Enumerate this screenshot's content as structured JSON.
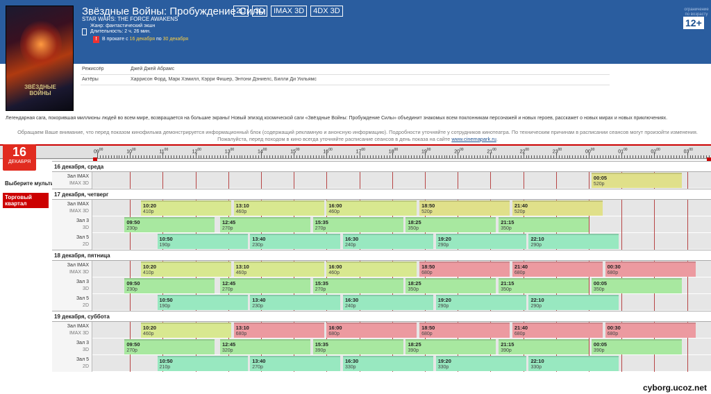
{
  "movie": {
    "title": "Звёздные Войны: Пробуждение Силы",
    "formats": [
      "2D",
      "3D",
      "IMAX 3D",
      "4DX 3D"
    ],
    "original_title": "STAR WARS: THE FORCE AWAKENS",
    "genre": "Жанр: фантастический экшн",
    "duration": "Длительность: 2 ч. 26 мин.",
    "release_prefix": "В прокате с",
    "release_from": "16 декабря",
    "release_mid": "по",
    "release_to": "30 декабря",
    "age_note": "ограничение по возрасту",
    "age_rating": "12+",
    "director_label": "Режиссёр",
    "director": "Джей Джей Абрамс",
    "actors_label": "Актёры",
    "actors": "Харрисон Форд, Марк Хэмилл, Кэрри Фишер, Энтони Дэниелс, Билли Ди Уильямс",
    "description": "Легендарная сага, покорившая миллионы людей во всем мире, возвращается на большие экраны! Новый эпизод космической саги «Звёздные Войны: Пробуждение Силы» объединит знакомых всем поклонникам персонажей и новых героев, расскажет о новых мирах и новых приключениях.",
    "notice": "Обращаем Ваше внимание, что перед показом кинофильма демонстрируется информационный блок (содержащий рекламную и анонсную информацию). Подробности уточняйте у сотрудников кинотеатра. По техническим причинам в расписании сеансов могут произойти изменения. Пожалуйста, перед походом в кино всегда уточняйте расписание сеансов в день показа на сайте",
    "notice_link": "www.cinemapark.ru",
    "poster_logo": "ЗВЁЗДНЫЕ ВОЙНЫ"
  },
  "sidebar": {
    "date_day": "16",
    "date_month": "ДЕКАБРЯ",
    "choose_label": "Выберите мультиплекс:",
    "multiplex": "Торговый квартал"
  },
  "timeline": {
    "hours": [
      "09",
      "10",
      "11",
      "12",
      "13",
      "14",
      "15",
      "16",
      "17",
      "18",
      "19",
      "20",
      "21",
      "22",
      "23",
      "00",
      "01",
      "02",
      "03"
    ],
    "minutes_suffix": "00"
  },
  "days": [
    {
      "date": "16 декабря, среда",
      "halls": [
        {
          "name": "Зал IMAX",
          "format": "IMAX 3D",
          "sessions": [
            {
              "time": "00:05",
              "price": "520р",
              "color": "k"
            }
          ]
        }
      ]
    },
    {
      "date": "17 декабря, четверг",
      "halls": [
        {
          "name": "Зал IMAX",
          "format": "IMAX 3D",
          "sessions": [
            {
              "time": "10:20",
              "price": "410р",
              "color": "y"
            },
            {
              "time": "13:10",
              "price": "460р",
              "color": "y"
            },
            {
              "time": "16:00",
              "price": "460р",
              "color": "y"
            },
            {
              "time": "18:50",
              "price": "520р",
              "color": "k"
            },
            {
              "time": "21:40",
              "price": "520р",
              "color": "k"
            }
          ]
        },
        {
          "name": "Зал 3",
          "format": "3D",
          "sessions": [
            {
              "time": "09:50",
              "price": "230р",
              "color": "g"
            },
            {
              "time": "12:45",
              "price": "270р",
              "color": "g"
            },
            {
              "time": "15:35",
              "price": "270р",
              "color": "g"
            },
            {
              "time": "18:25",
              "price": "350р",
              "color": "g"
            },
            {
              "time": "21:15",
              "price": "350р",
              "color": "g"
            }
          ]
        },
        {
          "name": "Зал 5",
          "format": "2D",
          "sessions": [
            {
              "time": "10:50",
              "price": "190р",
              "color": "t"
            },
            {
              "time": "13:40",
              "price": "230р",
              "color": "t"
            },
            {
              "time": "16:30",
              "price": "240р",
              "color": "t"
            },
            {
              "time": "19:20",
              "price": "290р",
              "color": "t"
            },
            {
              "time": "22:10",
              "price": "290р",
              "color": "t"
            }
          ]
        }
      ]
    },
    {
      "date": "18 декабря, пятница",
      "halls": [
        {
          "name": "Зал IMAX",
          "format": "IMAX 3D",
          "sessions": [
            {
              "time": "10:20",
              "price": "410р",
              "color": "y"
            },
            {
              "time": "13:10",
              "price": "460р",
              "color": "y"
            },
            {
              "time": "16:00",
              "price": "460р",
              "color": "y"
            },
            {
              "time": "18:50",
              "price": "680р",
              "color": "r"
            },
            {
              "time": "21:40",
              "price": "680р",
              "color": "r"
            },
            {
              "time": "00:30",
              "price": "680р",
              "color": "r"
            }
          ]
        },
        {
          "name": "Зал 3",
          "format": "3D",
          "sessions": [
            {
              "time": "09:50",
              "price": "230р",
              "color": "g"
            },
            {
              "time": "12:45",
              "price": "270р",
              "color": "g"
            },
            {
              "time": "15:35",
              "price": "270р",
              "color": "g"
            },
            {
              "time": "18:25",
              "price": "350р",
              "color": "g"
            },
            {
              "time": "21:15",
              "price": "350р",
              "color": "g"
            },
            {
              "time": "00:05",
              "price": "350р",
              "color": "g"
            }
          ]
        },
        {
          "name": "Зал 5",
          "format": "2D",
          "sessions": [
            {
              "time": "10:50",
              "price": "190р",
              "color": "t"
            },
            {
              "time": "13:40",
              "price": "230р",
              "color": "t"
            },
            {
              "time": "16:30",
              "price": "240р",
              "color": "t"
            },
            {
              "time": "19:20",
              "price": "290р",
              "color": "t"
            },
            {
              "time": "22:10",
              "price": "290р",
              "color": "t"
            }
          ]
        }
      ]
    },
    {
      "date": "19 декабря, суббота",
      "halls": [
        {
          "name": "Зал IMAX",
          "format": "IMAX 3D",
          "sessions": [
            {
              "time": "10:20",
              "price": "460р",
              "color": "y"
            },
            {
              "time": "13:10",
              "price": "680р",
              "color": "r"
            },
            {
              "time": "16:00",
              "price": "680р",
              "color": "r"
            },
            {
              "time": "18:50",
              "price": "680р",
              "color": "r"
            },
            {
              "time": "21:40",
              "price": "680р",
              "color": "r"
            },
            {
              "time": "00:30",
              "price": "680р",
              "color": "r"
            }
          ]
        },
        {
          "name": "Зал 3",
          "format": "3D",
          "sessions": [
            {
              "time": "09:50",
              "price": "270р",
              "color": "g"
            },
            {
              "time": "12:45",
              "price": "320р",
              "color": "g"
            },
            {
              "time": "15:35",
              "price": "390р",
              "color": "g"
            },
            {
              "time": "18:25",
              "price": "390р",
              "color": "g"
            },
            {
              "time": "21:15",
              "price": "390р",
              "color": "g"
            },
            {
              "time": "00:05",
              "price": "390р",
              "color": "g"
            }
          ]
        },
        {
          "name": "Зал 5",
          "format": "2D",
          "sessions": [
            {
              "time": "10:50",
              "price": "210р",
              "color": "t"
            },
            {
              "time": "13:40",
              "price": "270р",
              "color": "t"
            },
            {
              "time": "16:30",
              "price": "330р",
              "color": "t"
            },
            {
              "time": "19:20",
              "price": "330р",
              "color": "t"
            },
            {
              "time": "22:10",
              "price": "330р",
              "color": "t"
            }
          ]
        }
      ]
    }
  ],
  "watermark": "cyborg.ucoz.net"
}
